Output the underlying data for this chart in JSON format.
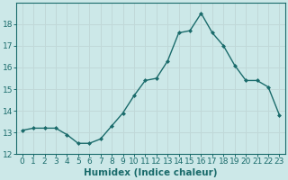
{
  "x": [
    0,
    1,
    2,
    3,
    4,
    5,
    6,
    7,
    8,
    9,
    10,
    11,
    12,
    13,
    14,
    15,
    16,
    17,
    18,
    19,
    20,
    21,
    22,
    23
  ],
  "y": [
    13.1,
    13.2,
    13.2,
    13.2,
    12.9,
    12.5,
    12.5,
    12.7,
    13.3,
    13.9,
    14.7,
    15.4,
    15.5,
    16.3,
    17.6,
    17.7,
    18.5,
    17.6,
    17.0,
    16.1,
    15.4,
    15.4,
    15.1,
    13.8
  ],
  "line_color": "#1a6b6b",
  "marker": "D",
  "marker_size": 2.0,
  "bg_color": "#cce8e8",
  "grid_major_color": "#c0d8d8",
  "grid_minor_color": "#d8ecec",
  "xlabel": "Humidex (Indice chaleur)",
  "ylabel": "",
  "xlim": [
    -0.5,
    23.5
  ],
  "ylim": [
    12,
    19
  ],
  "yticks": [
    12,
    13,
    14,
    15,
    16,
    17,
    18
  ],
  "xticks": [
    0,
    1,
    2,
    3,
    4,
    5,
    6,
    7,
    8,
    9,
    10,
    11,
    12,
    13,
    14,
    15,
    16,
    17,
    18,
    19,
    20,
    21,
    22,
    23
  ],
  "xlabel_fontsize": 7.5,
  "tick_fontsize": 6.5,
  "line_width": 1.0,
  "tick_color": "#1a6b6b",
  "spine_color": "#1a6b6b"
}
